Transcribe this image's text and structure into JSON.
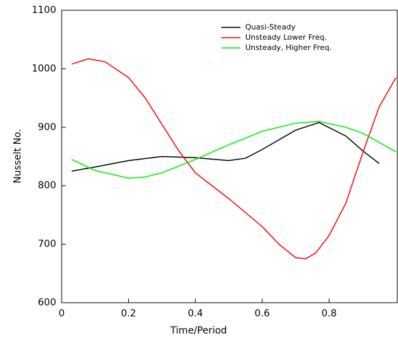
{
  "chart_data": {
    "type": "line",
    "xlabel": "Time/Period",
    "ylabel": "Nusselt No.",
    "xlim": [
      0,
      1
    ],
    "ylim": [
      600,
      1100
    ],
    "xticks": [
      0,
      0.2,
      0.4,
      0.6,
      0.8
    ],
    "yticks": [
      600,
      700,
      800,
      900,
      1000,
      1100
    ],
    "legend": "upper right",
    "series": [
      {
        "name": "Quasi-Steady",
        "color": "#000000",
        "x": [
          0.03,
          0.1,
          0.2,
          0.3,
          0.4,
          0.5,
          0.55,
          0.6,
          0.7,
          0.77,
          0.85,
          0.9,
          0.95
        ],
        "values": [
          825,
          832,
          843,
          850,
          848,
          843,
          847,
          862,
          895,
          908,
          885,
          860,
          838
        ]
      },
      {
        "name": "Unsteady Lower Freq.",
        "color": "#ff0000",
        "x": [
          0.03,
          0.08,
          0.13,
          0.2,
          0.25,
          0.3,
          0.35,
          0.4,
          0.5,
          0.6,
          0.65,
          0.7,
          0.73,
          0.76,
          0.8,
          0.85,
          0.9,
          0.95,
          1.0
        ],
        "values": [
          1008,
          1017,
          1012,
          985,
          950,
          905,
          860,
          822,
          778,
          730,
          700,
          677,
          675,
          685,
          715,
          770,
          855,
          935,
          985
        ]
      },
      {
        "name": "Unsteady, Higher Freq.",
        "color": "#00ee00",
        "x": [
          0.03,
          0.1,
          0.2,
          0.25,
          0.3,
          0.4,
          0.5,
          0.6,
          0.7,
          0.77,
          0.85,
          0.9,
          1.0
        ],
        "values": [
          845,
          826,
          813,
          815,
          822,
          845,
          870,
          893,
          907,
          910,
          900,
          890,
          858
        ]
      }
    ]
  }
}
